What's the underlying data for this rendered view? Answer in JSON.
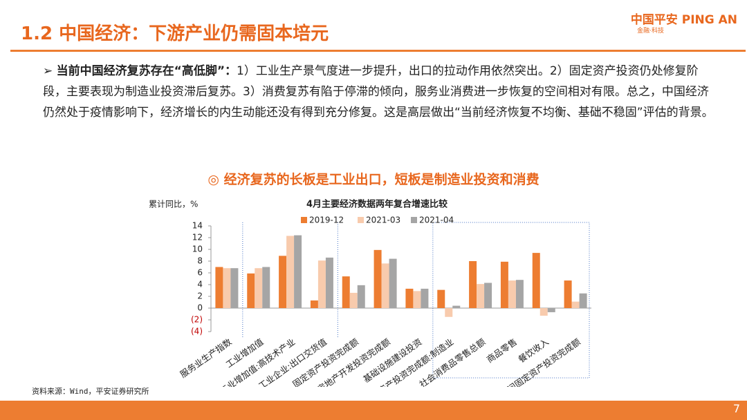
{
  "header": {
    "title": "1.2 中国经济：下游产业仍需固本培元",
    "logo": "中国平安 PING AN",
    "logo_sub": "金融·科技"
  },
  "bullet": {
    "lead": "当前中国经济复苏存在“高低脚”：",
    "text": "1）工业生产景气度进一步提升，出口的拉动作用依然突出。2）固定资产投资仍处修复阶段，主要表现为制造业投资滞后复苏。3）消费复苏有陷于停滞的倾向，服务业消费进一步恢复的空间相对有限。总之，中国经济仍然处于疫情影响下，经济增长的内生动能还没有得到充分修复。这是高层做出“当前经济恢复不均衡、基础不稳固”评估的背景。"
  },
  "subtitle": "◎ 经济复苏的长板是工业出口，短板是制造业投资和消费",
  "chart_data": {
    "type": "bar",
    "title": "4月主要经济数据两年复合增速比较",
    "y_label": "累计同比，%",
    "categories": [
      "服务业生产指数",
      "工业增加值",
      "工业增加值:高技术产业",
      "工业企业:出口交货值",
      "固定资产投资完成额",
      "房地产开发投资完成额",
      "基础设施建设投资",
      "固定资产投资完成额:制造业",
      "社会消费品零售总额",
      "商品零售",
      "餐饮收入",
      "民间固定资产投资完成额"
    ],
    "series": [
      {
        "name": "2019-12",
        "color": "#ed7d31",
        "values": [
          7.0,
          5.9,
          8.9,
          1.3,
          5.4,
          9.9,
          3.3,
          3.1,
          8.0,
          7.9,
          9.4,
          4.7
        ]
      },
      {
        "name": "2021-03",
        "color": "#f8cbad",
        "values": [
          6.8,
          6.8,
          12.3,
          8.1,
          2.6,
          7.6,
          2.9,
          -1.5,
          4.1,
          4.7,
          -1.3,
          1.1
        ]
      },
      {
        "name": "2021-04",
        "color": "#a5a5a5",
        "values": [
          6.8,
          7.0,
          12.4,
          8.6,
          3.9,
          8.4,
          3.3,
          0.4,
          4.3,
          4.8,
          -0.7,
          2.5
        ]
      }
    ],
    "ylim": [
      -4,
      14
    ],
    "yticks": [
      {
        "value": -4,
        "label": "(4)"
      },
      {
        "value": -2,
        "label": "(2)"
      },
      0,
      2,
      4,
      6,
      8,
      10,
      12,
      14
    ]
  },
  "source": "资料来源：Wind，平安证券研究所",
  "page": "7"
}
